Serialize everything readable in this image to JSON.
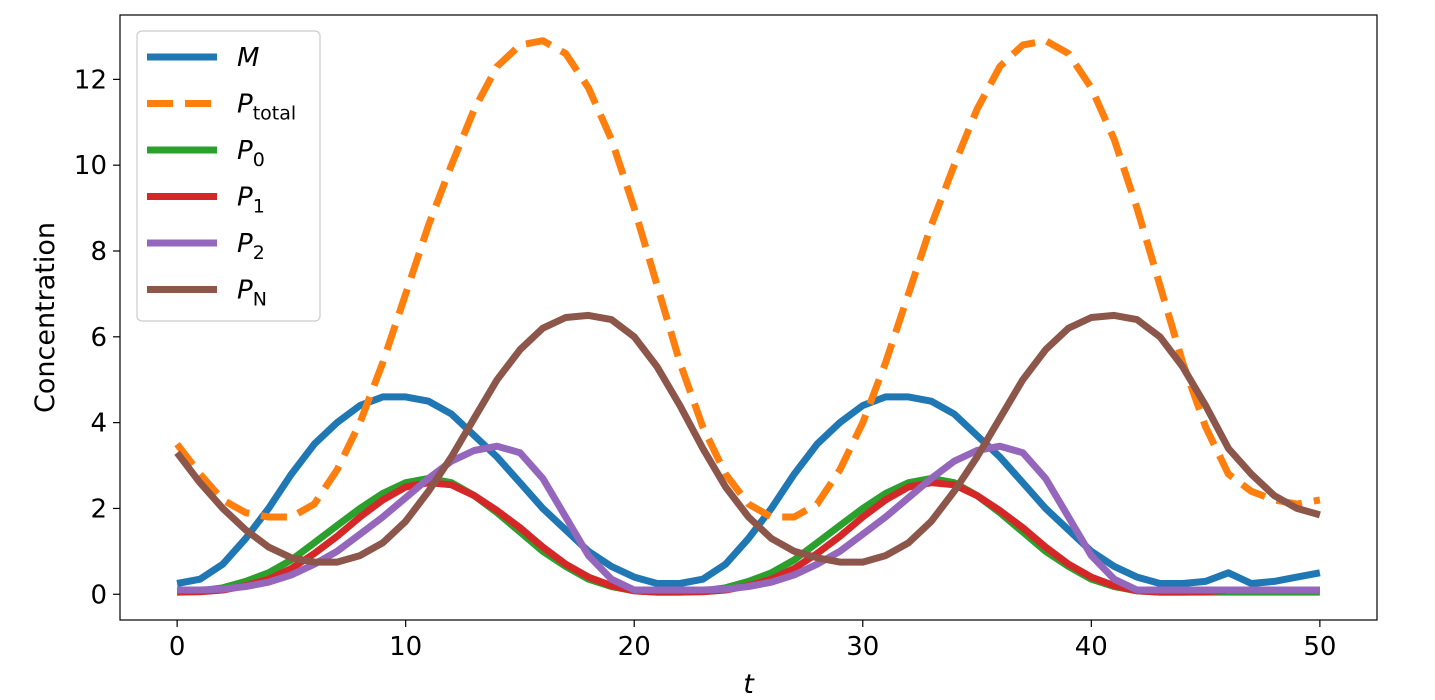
{
  "chart_data": {
    "type": "line",
    "xlabel": "t",
    "ylabel": "Concentration",
    "xlim": [
      -2.5,
      52.5
    ],
    "ylim": [
      -0.6,
      13.5
    ],
    "xticks": [
      0,
      10,
      20,
      30,
      40,
      50
    ],
    "yticks": [
      0,
      2,
      4,
      6,
      8,
      10,
      12
    ],
    "grid": false,
    "legend_position": "top-left",
    "x": [
      0,
      1,
      2,
      3,
      4,
      5,
      6,
      7,
      8,
      9,
      10,
      11,
      12,
      13,
      14,
      15,
      16,
      17,
      18,
      19,
      20,
      21,
      22,
      23,
      24,
      25,
      26,
      27,
      28,
      29,
      30,
      31,
      32,
      33,
      34,
      35,
      36,
      37,
      38,
      39,
      40,
      41,
      42,
      43,
      44,
      45,
      46,
      47,
      48,
      49,
      50
    ],
    "series": [
      {
        "name": "M",
        "sub": "",
        "color": "#1f77b4",
        "dashed": false,
        "values": [
          0.25,
          0.35,
          0.7,
          1.3,
          2.0,
          2.8,
          3.5,
          4.0,
          4.4,
          4.6,
          4.6,
          4.5,
          4.2,
          3.7,
          3.2,
          2.6,
          2.0,
          1.5,
          1.0,
          0.65,
          0.4,
          0.25,
          0.25,
          0.35,
          0.7,
          1.3,
          2.0,
          2.8,
          3.5,
          4.0,
          4.4,
          4.6,
          4.6,
          4.5,
          4.2,
          3.7,
          3.2,
          2.6,
          2.0,
          1.5,
          1.0,
          0.65,
          0.4,
          0.25,
          0.25,
          0.3,
          0.5,
          0.25,
          0.3,
          0.4,
          0.5
        ]
      },
      {
        "name": "P",
        "sub": "total",
        "color": "#ff7f0e",
        "dashed": true,
        "values": [
          3.5,
          2.8,
          2.2,
          1.9,
          1.8,
          1.8,
          2.1,
          2.9,
          4.0,
          5.4,
          7.0,
          8.6,
          10.0,
          11.3,
          12.3,
          12.8,
          12.9,
          12.6,
          11.8,
          10.6,
          9.0,
          7.2,
          5.4,
          3.9,
          2.8,
          2.1,
          1.8,
          1.8,
          2.1,
          2.9,
          4.0,
          5.4,
          7.0,
          8.6,
          10.0,
          11.3,
          12.3,
          12.8,
          12.9,
          12.6,
          11.8,
          10.6,
          9.0,
          7.2,
          5.4,
          3.9,
          2.8,
          2.4,
          2.2,
          2.1,
          2.2
        ]
      },
      {
        "name": "P",
        "sub": "0",
        "color": "#2ca02c",
        "dashed": false,
        "values": [
          0.05,
          0.08,
          0.15,
          0.3,
          0.5,
          0.8,
          1.2,
          1.6,
          2.0,
          2.35,
          2.6,
          2.7,
          2.6,
          2.3,
          1.9,
          1.45,
          1.0,
          0.65,
          0.35,
          0.18,
          0.08,
          0.05,
          0.05,
          0.08,
          0.15,
          0.3,
          0.5,
          0.8,
          1.2,
          1.6,
          2.0,
          2.35,
          2.6,
          2.7,
          2.6,
          2.3,
          1.9,
          1.45,
          1.0,
          0.65,
          0.35,
          0.18,
          0.08,
          0.05,
          0.05,
          0.05,
          0.05,
          0.05,
          0.05,
          0.05,
          0.05
        ]
      },
      {
        "name": "P",
        "sub": "1",
        "color": "#d62728",
        "dashed": false,
        "values": [
          0.05,
          0.06,
          0.1,
          0.2,
          0.35,
          0.6,
          0.95,
          1.35,
          1.8,
          2.2,
          2.5,
          2.6,
          2.55,
          2.3,
          1.95,
          1.55,
          1.1,
          0.7,
          0.4,
          0.2,
          0.08,
          0.05,
          0.05,
          0.06,
          0.1,
          0.2,
          0.35,
          0.6,
          0.95,
          1.35,
          1.8,
          2.2,
          2.5,
          2.6,
          2.55,
          2.3,
          1.95,
          1.55,
          1.1,
          0.7,
          0.4,
          0.2,
          0.08,
          0.05,
          0.05,
          0.06,
          0.1,
          0.1,
          0.1,
          0.1,
          0.1
        ]
      },
      {
        "name": "P",
        "sub": "2",
        "color": "#9467bd",
        "dashed": false,
        "values": [
          0.1,
          0.1,
          0.12,
          0.18,
          0.28,
          0.45,
          0.7,
          1.0,
          1.4,
          1.8,
          2.25,
          2.7,
          3.1,
          3.35,
          3.45,
          3.3,
          2.7,
          1.8,
          0.9,
          0.35,
          0.1,
          0.1,
          0.1,
          0.1,
          0.12,
          0.18,
          0.28,
          0.45,
          0.7,
          1.0,
          1.4,
          1.8,
          2.25,
          2.7,
          3.1,
          3.35,
          3.45,
          3.3,
          2.7,
          1.8,
          0.9,
          0.35,
          0.1,
          0.1,
          0.1,
          0.1,
          0.1,
          0.1,
          0.1,
          0.1,
          0.1
        ]
      },
      {
        "name": "P",
        "sub": "N",
        "color": "#8c564b",
        "dashed": false,
        "values": [
          3.3,
          2.6,
          2.0,
          1.5,
          1.1,
          0.85,
          0.75,
          0.75,
          0.9,
          1.2,
          1.7,
          2.4,
          3.2,
          4.1,
          5.0,
          5.7,
          6.2,
          6.45,
          6.5,
          6.4,
          6.0,
          5.3,
          4.4,
          3.4,
          2.5,
          1.8,
          1.3,
          1.0,
          0.85,
          0.75,
          0.75,
          0.9,
          1.2,
          1.7,
          2.4,
          3.2,
          4.1,
          5.0,
          5.7,
          6.2,
          6.45,
          6.5,
          6.4,
          6.0,
          5.3,
          4.4,
          3.4,
          2.8,
          2.3,
          2.0,
          1.85
        ]
      }
    ]
  }
}
